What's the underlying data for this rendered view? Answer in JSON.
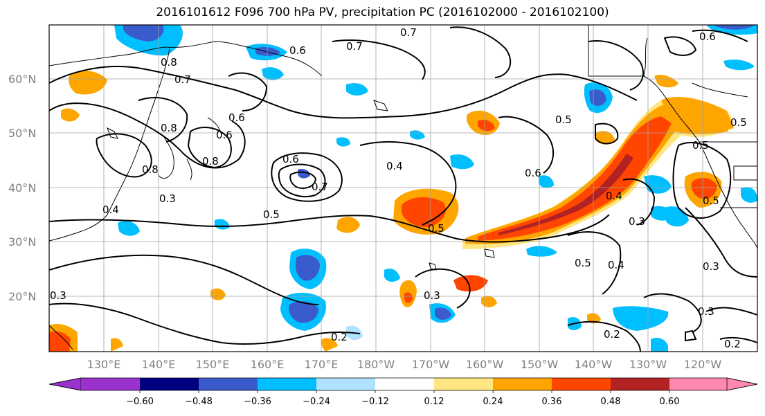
{
  "title": "2016101612 F096 700 hPa PV, precipitation PC (2016102000 - 2016102100)",
  "map": {
    "lat_labels": [
      "60°N",
      "50°N",
      "40°N",
      "30°N",
      "20°N"
    ],
    "lon_labels": [
      "130°E",
      "140°E",
      "150°E",
      "160°E",
      "170°E",
      "180°W",
      "170°W",
      "160°W",
      "150°W",
      "140°W",
      "130°W",
      "120°W"
    ],
    "contour_labels": [
      "0.6",
      "0.7",
      "0.8",
      "0.7",
      "0.6",
      "0.8",
      "0.6",
      "0.7",
      "0.6",
      "0.5",
      "0.5",
      "0.8",
      "0.8",
      "0.3",
      "0.4",
      "0.6",
      "0.7",
      "0.5",
      "0.4",
      "0.5",
      "0.6",
      "0.4",
      "0.5",
      "0.5",
      "0.3",
      "0.5",
      "0.4",
      "0.3",
      "0.3",
      "0.2",
      "0.2",
      "0.3",
      "0.3",
      "0.2"
    ],
    "fill_colors": {
      "neg_060": "#9932cc",
      "neg_048": "#000080",
      "neg_036": "#3a5bcc",
      "neg_024": "#00bfff",
      "neg_012": "#b0e2ff",
      "zero": "#ffffff",
      "pos_012": "#ffe680",
      "pos_024": "#ffa500",
      "pos_036": "#ff4500",
      "pos_048": "#b22222",
      "pos_060": "#ff88b0"
    }
  },
  "colorbar": {
    "tick_labels": [
      "−0.60",
      "−0.48",
      "−0.36",
      "−0.24",
      "−0.12",
      "0.12",
      "0.24",
      "0.36",
      "0.48",
      "0.60"
    ],
    "colors": [
      "#9932cc",
      "#000080",
      "#3a5bcc",
      "#00bfff",
      "#b0e2ff",
      "#ffffff",
      "#ffe680",
      "#ffa500",
      "#ff4500",
      "#b22222",
      "#ff88b0"
    ]
  }
}
